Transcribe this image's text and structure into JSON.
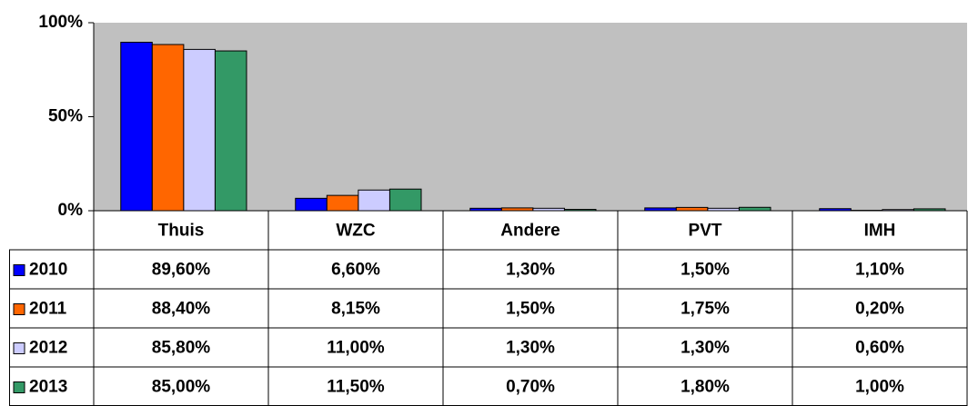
{
  "chart_data": {
    "type": "bar",
    "categories": [
      "Thuis",
      "WZC",
      "Andere",
      "PVT",
      "IMH"
    ],
    "series": [
      {
        "name": "2010",
        "color": "#0000ff",
        "values": [
          89.6,
          6.6,
          1.3,
          1.5,
          1.1
        ],
        "value_labels": [
          "89,60%",
          "6,60%",
          "1,30%",
          "1,50%",
          "1,10%"
        ]
      },
      {
        "name": "2011",
        "color": "#ff6600",
        "values": [
          88.4,
          8.15,
          1.5,
          1.75,
          0.2
        ],
        "value_labels": [
          "88,40%",
          "8,15%",
          "1,50%",
          "1,75%",
          "0,20%"
        ]
      },
      {
        "name": "2012",
        "color": "#ccccff",
        "values": [
          85.8,
          11.0,
          1.3,
          1.3,
          0.6
        ],
        "value_labels": [
          "85,80%",
          "11,00%",
          "1,30%",
          "1,30%",
          "0,60%"
        ]
      },
      {
        "name": "2013",
        "color": "#339966",
        "values": [
          85.0,
          11.5,
          0.7,
          1.8,
          1.0
        ],
        "value_labels": [
          "85,00%",
          "11,50%",
          "0,70%",
          "1,80%",
          "1,00%"
        ]
      }
    ],
    "ylim": [
      0,
      100
    ],
    "yticks": [
      {
        "value": 0,
        "label": "0%"
      },
      {
        "value": 50,
        "label": "50%"
      },
      {
        "value": 100,
        "label": "100%"
      }
    ],
    "plot_background": "#c0c0c0"
  }
}
